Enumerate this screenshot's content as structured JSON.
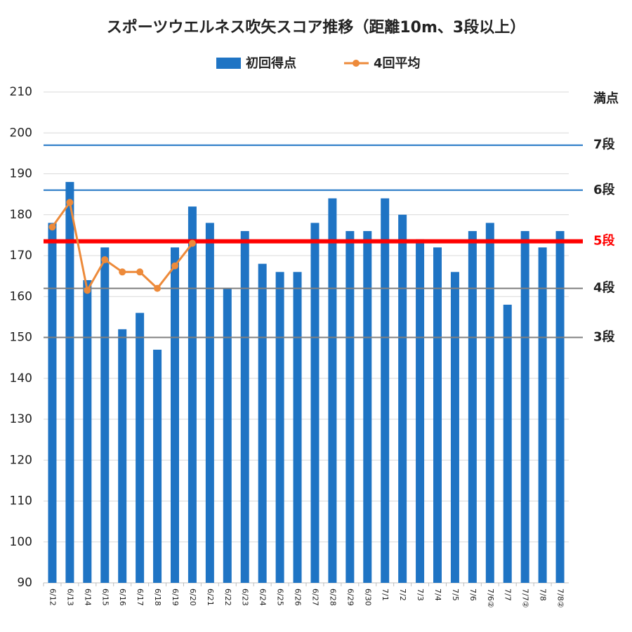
{
  "chart_data": {
    "type": "bar_line",
    "title": "スポーツウエルネス吹矢スコア推移（距離10m、3段以上）",
    "categories": [
      "6/12",
      "6/13",
      "6/14",
      "6/15",
      "6/16",
      "6/17",
      "6/18",
      "6/19",
      "6/20",
      "6/21",
      "6/22",
      "6/23",
      "6/24",
      "6/25",
      "6/26",
      "6/27",
      "6/28",
      "6/29",
      "6/30",
      "7/1",
      "7/2",
      "7/3",
      "7/4",
      "7/5",
      "7/6",
      "7/6②",
      "7/7",
      "7/7②",
      "7/8",
      "7/8②"
    ],
    "series": [
      {
        "name": "初回得点",
        "type": "bar",
        "color": "#1f74c4",
        "values": [
          178,
          188,
          164,
          172,
          152,
          156,
          147,
          172,
          182,
          178,
          162,
          176,
          168,
          166,
          166,
          178,
          184,
          176,
          176,
          184,
          180,
          174,
          172,
          166,
          176,
          178,
          158,
          176,
          172,
          176
        ]
      },
      {
        "name": "4回平均",
        "type": "line",
        "color": "#ed8a3a",
        "values": [
          177,
          183,
          161.5,
          169,
          166,
          166,
          162,
          167.5,
          173,
          null,
          null,
          null,
          null,
          null,
          null,
          null,
          null,
          null,
          null,
          null,
          null,
          null,
          null,
          null,
          null,
          null,
          null,
          null,
          null,
          null
        ]
      }
    ],
    "ylim": [
      90,
      210
    ],
    "yticks": [
      90,
      100,
      110,
      120,
      130,
      140,
      150,
      160,
      170,
      180,
      190,
      200,
      210
    ],
    "grid": true,
    "legend": "top",
    "reference_lines": [
      {
        "label": "満点",
        "value": 210,
        "color": "#222222",
        "show_line": false
      },
      {
        "label": "7段",
        "value": 197,
        "color": "#1f74c4",
        "label_color": "#222222",
        "show_line": true,
        "width": 2
      },
      {
        "label": "6段",
        "value": 186,
        "color": "#1f74c4",
        "label_color": "#222222",
        "show_line": true,
        "width": 2
      },
      {
        "label": "5段",
        "value": 173.5,
        "color": "#ff0000",
        "label_color": "#ff0000",
        "show_line": true,
        "width": 6
      },
      {
        "label": "4段",
        "value": 162,
        "color": "#808080",
        "label_color": "#222222",
        "show_line": true,
        "width": 2
      },
      {
        "label": "3段",
        "value": 150,
        "color": "#808080",
        "label_color": "#222222",
        "show_line": true,
        "width": 2
      }
    ]
  }
}
